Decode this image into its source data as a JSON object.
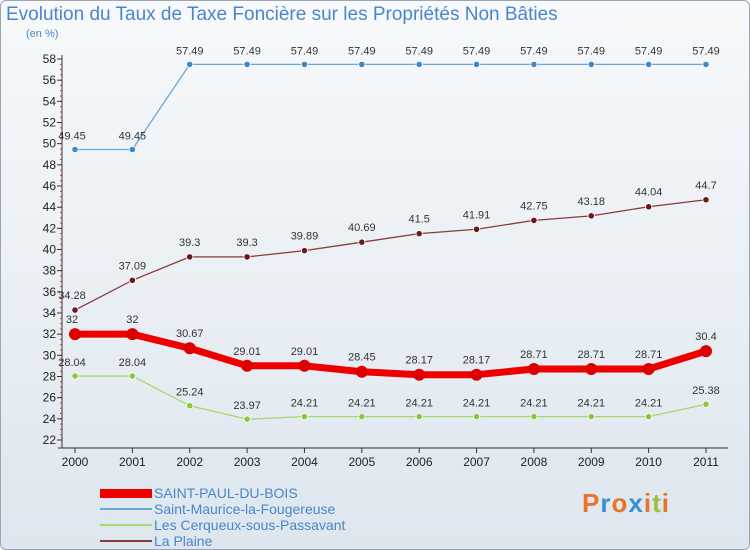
{
  "header": {
    "title": "Evolution du Taux de Taxe Foncière sur les Propriétés Non Bâties",
    "unit": "(en %)"
  },
  "logo": {
    "text": "Proxiti",
    "colors": [
      "#e8742a",
      "#3a8fd0",
      "#e8742a",
      "#3a8fd0",
      "#e8742a",
      "#9ac23c",
      "#e8742a"
    ]
  },
  "chart_data": {
    "type": "line",
    "title": "Evolution du Taux de Taxe Foncière sur les Propriétés Non Bâties",
    "ylabel": "(en %)",
    "xlabel": "",
    "x": [
      "2000",
      "2001",
      "2002",
      "2003",
      "2004",
      "2005",
      "2006",
      "2007",
      "2008",
      "2009",
      "2010",
      "2011"
    ],
    "ylim": [
      22,
      58
    ],
    "yticks": [
      22,
      24,
      26,
      28,
      30,
      32,
      34,
      36,
      38,
      40,
      42,
      44,
      46,
      48,
      50,
      52,
      54,
      56,
      58
    ],
    "grid": false,
    "legend_position": "bottom-left",
    "series": [
      {
        "name": "SAINT-PAUL-DU-BOIS",
        "color": "#ee0000",
        "marker": "#dd0000",
        "thick": true,
        "values": [
          32,
          32,
          30.67,
          29.01,
          29.01,
          28.45,
          28.17,
          28.17,
          28.71,
          28.71,
          28.71,
          30.4
        ],
        "labels": [
          "32",
          "32",
          "30.67",
          "29.01",
          "29.01",
          "28.45",
          "28.17",
          "28.17",
          "28.71",
          "28.71",
          "28.71",
          "30.4"
        ]
      },
      {
        "name": "Saint-Maurice-la-Fougereuse",
        "color": "#6aa6d8",
        "marker": "#3f88c8",
        "thick": false,
        "values": [
          49.45,
          49.45,
          57.49,
          57.49,
          57.49,
          57.49,
          57.49,
          57.49,
          57.49,
          57.49,
          57.49,
          57.49
        ],
        "labels": [
          "49.45",
          "49.45",
          "57.49",
          "57.49",
          "57.49",
          "57.49",
          "57.49",
          "57.49",
          "57.49",
          "57.49",
          "57.49",
          "57.49"
        ]
      },
      {
        "name": "Les Cerqueux-sous-Passavant",
        "color": "#a6d870",
        "marker": "#8cc63f",
        "thick": false,
        "values": [
          28.04,
          28.04,
          25.24,
          23.97,
          24.21,
          24.21,
          24.21,
          24.21,
          24.21,
          24.21,
          24.21,
          25.38
        ],
        "labels": [
          "28.04",
          "28.04",
          "25.24",
          "23.97",
          "24.21",
          "24.21",
          "24.21",
          "24.21",
          "24.21",
          "24.21",
          "24.21",
          "25.38"
        ]
      },
      {
        "name": "La Plaine",
        "color": "#8a3a3a",
        "marker": "#6a1a1a",
        "thick": false,
        "values": [
          34.28,
          37.09,
          39.3,
          39.3,
          39.89,
          40.69,
          41.5,
          41.91,
          42.75,
          43.18,
          44.04,
          44.7
        ],
        "labels": [
          "34.28",
          "37.09",
          "39.3",
          "39.3",
          "39.89",
          "40.69",
          "41.5",
          "41.91",
          "42.75",
          "43.18",
          "44.04",
          "44.7"
        ]
      }
    ]
  }
}
